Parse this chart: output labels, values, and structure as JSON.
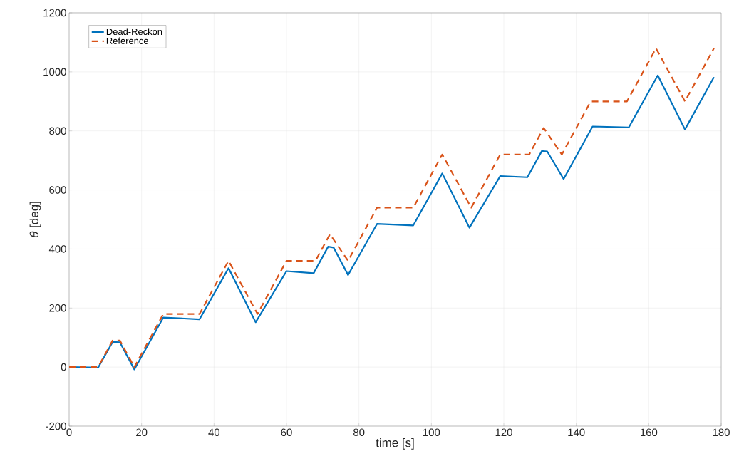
{
  "chart_data": {
    "type": "line",
    "xlabel": "time [s]",
    "ylabel": "*θ* [deg]",
    "xlim": [
      0,
      180
    ],
    "ylim": [
      -200,
      1200
    ],
    "xticks": [
      0,
      20,
      40,
      60,
      80,
      100,
      120,
      140,
      160,
      180
    ],
    "yticks": [
      -200,
      0,
      200,
      400,
      600,
      800,
      1000,
      1200
    ],
    "grid": true,
    "legend": "top left",
    "marker": "none",
    "series": [
      {
        "name": "Dead-Reckon",
        "color": "#0072bd",
        "line_style": "solid",
        "x": [
          0,
          8,
          12,
          14,
          18,
          26,
          36,
          44,
          51.5,
          60,
          67.5,
          71.5,
          73,
          77,
          85,
          95,
          103,
          110.5,
          119,
          126.5,
          130.5,
          132,
          136.5,
          144.5,
          154.5,
          162.5,
          170,
          178
        ],
        "values": [
          0,
          -2,
          85,
          84,
          -8,
          168,
          162,
          335,
          152,
          325,
          318,
          408,
          405,
          312,
          485,
          480,
          656,
          472,
          647,
          643,
          732,
          730,
          637,
          815,
          812,
          988,
          805,
          982
        ]
      },
      {
        "name": "Reference",
        "color": "#d95319",
        "line_style": "dashed",
        "x": [
          0,
          8,
          12,
          14,
          18,
          26,
          36,
          44,
          52,
          60,
          68,
          72,
          77,
          85,
          95,
          103,
          111,
          119,
          127,
          131,
          136,
          144,
          154,
          162,
          170,
          178
        ],
        "values": [
          0,
          0,
          90,
          90,
          0,
          180,
          180,
          360,
          180,
          360,
          360,
          450,
          360,
          540,
          540,
          720,
          540,
          720,
          720,
          810,
          720,
          900,
          900,
          1080,
          900,
          1080
        ]
      }
    ]
  }
}
